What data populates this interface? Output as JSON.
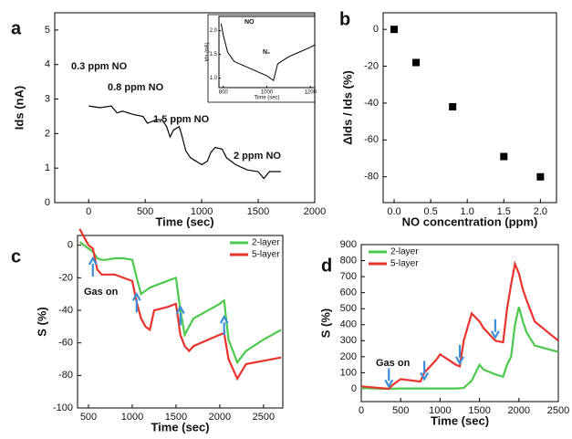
{
  "chart_data": [
    {
      "type": "line",
      "panel_label": "a",
      "x_label": "Time (sec)",
      "y_label": "Ids (nA)",
      "x": [
        0,
        100,
        200,
        250,
        300,
        400,
        480,
        520,
        600,
        650,
        690,
        720,
        750,
        800,
        820,
        860,
        900,
        1000,
        1050,
        1080,
        1120,
        1180,
        1220,
        1300,
        1400,
        1500,
        1550,
        1600,
        1700
      ],
      "values": [
        2.8,
        2.75,
        2.8,
        2.6,
        2.65,
        2.55,
        2.5,
        2.3,
        2.4,
        2.4,
        2.2,
        1.9,
        2.1,
        2.2,
        2.0,
        1.5,
        1.3,
        1.1,
        1.2,
        1.45,
        1.6,
        1.55,
        1.3,
        1.1,
        0.95,
        0.9,
        0.7,
        0.9,
        0.9
      ],
      "color": "#000000",
      "xlim": [
        -300,
        2000
      ],
      "ylim": [
        0,
        5.5
      ],
      "xticks": [
        0,
        500,
        1000,
        1500,
        2000
      ],
      "yticks": [
        0,
        1,
        2,
        3,
        4,
        5
      ],
      "annotations": [
        "0.3 ppm NO",
        "0.8 ppm NO",
        "1.5 ppm NO",
        "2 ppm NO"
      ]
    },
    {
      "type": "line",
      "x_label": "Time (sec)",
      "y_label": "Ids (nA)",
      "x": [
        790,
        800,
        820,
        850,
        900,
        950,
        1000,
        1030,
        1050,
        1100,
        1150,
        1200,
        1220
      ],
      "values": [
        2.15,
        1.9,
        1.55,
        1.35,
        1.25,
        1.15,
        1.05,
        0.95,
        1.3,
        1.45,
        1.55,
        1.65,
        1.7
      ],
      "color": "#000000",
      "xlim": [
        780,
        1220
      ],
      "ylim": [
        0.8,
        2.3
      ],
      "xticks": [
        800,
        1000,
        1200
      ],
      "yticks": [
        {
          "value": 1.0,
          "label": "1.0"
        },
        {
          "value": 1.5,
          "label": "1.5"
        },
        {
          "value": 2.0,
          "label": "2.0"
        }
      ],
      "annotations": [
        "NO",
        "N₂"
      ]
    },
    {
      "type": "scatter",
      "panel_label": "b",
      "x_label": "NO concentration (ppm)",
      "y_label": "ΔIds / Ids (%)",
      "x": [
        0.0,
        0.3,
        0.8,
        1.5,
        2.0
      ],
      "values": [
        0,
        -18,
        -42,
        -69,
        -80
      ],
      "color": "#000000",
      "xlim": [
        -0.15,
        2.22
      ],
      "ylim": [
        -94,
        9
      ],
      "xticks": [
        {
          "value": 0.0,
          "label": "0.0"
        },
        {
          "value": 0.5,
          "label": "0.5"
        },
        {
          "value": 1.0,
          "label": "1.0"
        },
        {
          "value": 1.5,
          "label": "1.5"
        },
        {
          "value": 2.0,
          "label": "2.0"
        }
      ],
      "yticks": [
        0,
        -20,
        -40,
        -60,
        -80
      ]
    },
    {
      "type": "line",
      "panel_label": "c",
      "x_label": "Time (sec)",
      "y_label": "S (%)",
      "x": [
        400,
        450,
        500,
        550,
        600,
        650,
        700,
        800,
        900,
        1000,
        1050,
        1100,
        1150,
        1200,
        1250,
        1400,
        1500,
        1550,
        1600,
        1650,
        1700,
        2000,
        2050,
        2100,
        2200,
        2300,
        2500,
        2700
      ],
      "series": [
        {
          "name": "2-layer",
          "color": "#4cc94c",
          "values": [
            2,
            0,
            -2,
            -4,
            -8,
            -9,
            -9,
            -8,
            -8,
            -9,
            -20,
            -30,
            -28,
            -26,
            -25,
            -22,
            -20,
            -40,
            -55,
            -50,
            -45,
            -36,
            -34,
            -58,
            -72,
            -65,
            -58,
            -52
          ]
        },
        {
          "name": "5-layer",
          "color": "#e8342c",
          "values": [
            10,
            5,
            0,
            -2,
            -15,
            -18,
            -18,
            -18,
            -20,
            -22,
            -35,
            -45,
            -50,
            -52,
            -40,
            -38,
            -36,
            -55,
            -62,
            -65,
            -62,
            -55,
            -54,
            -70,
            -82,
            -73,
            -71,
            -69
          ]
        }
      ],
      "xlim": [
        375,
        2720
      ],
      "ylim": [
        -100,
        6
      ],
      "xticks": [
        500,
        1000,
        1500,
        2000,
        2500
      ],
      "yticks": [
        -100,
        -80,
        -60,
        -40,
        -20,
        0
      ],
      "legend": "upper right",
      "annotations": [
        "Gas on"
      ],
      "arrows": {
        "direction": "up",
        "color": "#3a8fd9",
        "x": [
          550,
          1050,
          1550,
          2050
        ],
        "y": [
          -8,
          -30,
          -38,
          -44
        ]
      }
    },
    {
      "type": "line",
      "panel_label": "d",
      "x_label": "Time (sec)",
      "y_label": "S (%)",
      "x": [
        0,
        300,
        350,
        400,
        500,
        750,
        800,
        950,
        1000,
        1200,
        1250,
        1300,
        1400,
        1500,
        1550,
        1700,
        1800,
        1850,
        1900,
        1950,
        2000,
        2050,
        2100,
        2200,
        2500
      ],
      "series": [
        {
          "name": "2-layer",
          "color": "#4cc94c",
          "values": [
            5,
            0,
            0,
            1,
            2,
            2,
            2,
            2,
            2,
            2,
            3,
            5,
            50,
            150,
            120,
            90,
            75,
            150,
            200,
            400,
            510,
            420,
            350,
            270,
            230
          ]
        },
        {
          "name": "5-layer",
          "color": "#e8342c",
          "values": [
            15,
            2,
            0,
            25,
            60,
            45,
            100,
            180,
            215,
            150,
            140,
            300,
            470,
            420,
            380,
            300,
            290,
            500,
            650,
            780,
            720,
            620,
            550,
            420,
            300
          ]
        }
      ],
      "xlim": [
        0,
        2500
      ],
      "ylim": [
        -80,
        900
      ],
      "xticks": [
        0,
        500,
        1000,
        1500,
        2000,
        2500
      ],
      "yticks": [
        0,
        100,
        200,
        300,
        400,
        500,
        600,
        700,
        800,
        900
      ],
      "legend": "upper left",
      "annotations": [
        "Gas on"
      ],
      "arrows": {
        "direction": "down",
        "color": "#3a8fd9",
        "x": [
          350,
          800,
          1250,
          1700
        ],
        "y": [
          15,
          60,
          160,
          320
        ]
      }
    }
  ]
}
